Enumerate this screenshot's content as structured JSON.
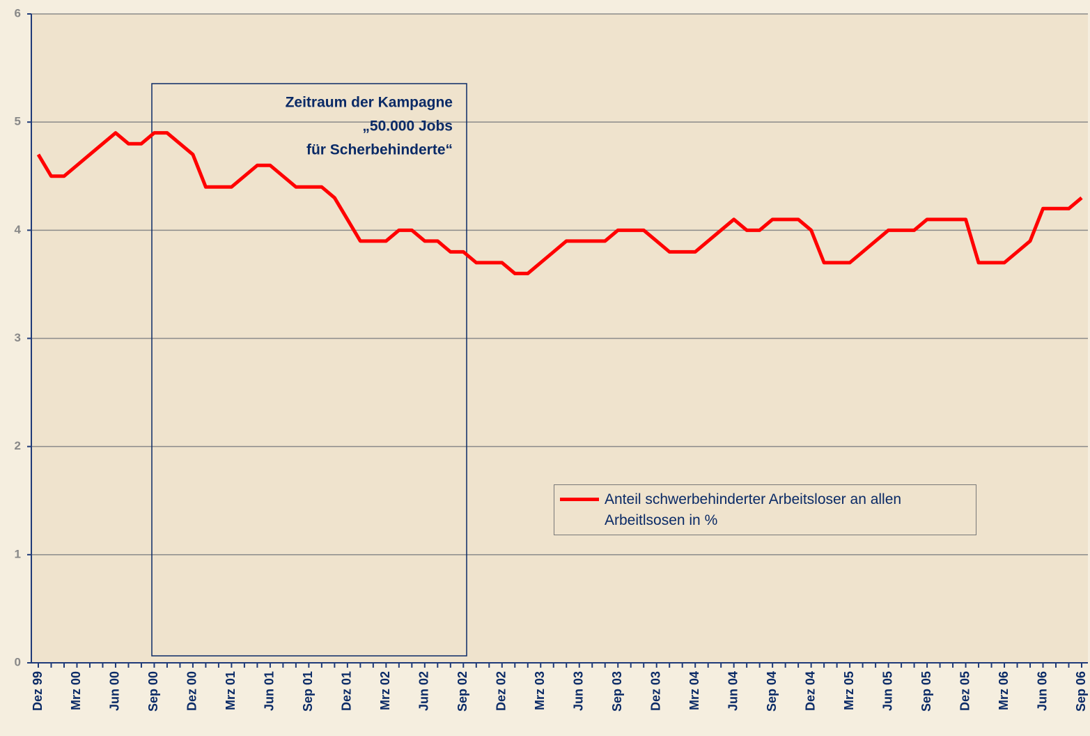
{
  "chart_data": {
    "type": "line",
    "categories": [
      "Dez 99",
      null,
      null,
      "Mrz 00",
      null,
      null,
      "Jun 00",
      null,
      null,
      "Sep 00",
      null,
      null,
      "Dez 00",
      null,
      null,
      "Mrz 01",
      null,
      null,
      "Jun 01",
      null,
      null,
      "Sep 01",
      null,
      null,
      "Dez 01",
      null,
      null,
      "Mrz 02",
      null,
      null,
      "Jun 02",
      null,
      null,
      "Sep 02",
      null,
      null,
      "Dez 02",
      null,
      null,
      "Mrz 03",
      null,
      null,
      "Jun 03",
      null,
      null,
      "Sep 03",
      null,
      null,
      "Dez 03",
      null,
      null,
      "Mrz 04",
      null,
      null,
      "Jun 04",
      null,
      null,
      "Sep 04",
      null,
      null,
      "Dez 04",
      null,
      null,
      "Mrz 05",
      null,
      null,
      "Jun 05",
      null,
      null,
      "Sep 05",
      null,
      null,
      "Dez 05",
      null,
      null,
      "Mrz 06",
      null,
      null,
      "Jun 06",
      null,
      null,
      "Sep 06"
    ],
    "series": [
      {
        "name": "Anteil schwerbehinderter Arbeitsloser an allen Arbeitlsosen in %",
        "color": "#ff0000",
        "values": [
          4.7,
          4.5,
          4.5,
          4.6,
          4.7,
          4.8,
          4.9,
          4.8,
          4.8,
          4.9,
          4.9,
          4.8,
          4.7,
          4.4,
          4.4,
          4.4,
          4.5,
          4.6,
          4.6,
          4.5,
          4.4,
          4.4,
          4.4,
          4.3,
          4.1,
          3.9,
          3.9,
          3.9,
          4.0,
          4.0,
          3.9,
          3.9,
          3.8,
          3.8,
          3.7,
          3.7,
          3.7,
          3.6,
          3.6,
          3.7,
          3.8,
          3.9,
          3.9,
          3.9,
          3.9,
          4.0,
          4.0,
          4.0,
          3.9,
          3.8,
          3.8,
          3.8,
          3.9,
          4.0,
          4.1,
          4.0,
          4.0,
          4.1,
          4.1,
          4.1,
          4.0,
          3.7,
          3.7,
          3.7,
          3.8,
          3.9,
          4.0,
          4.0,
          4.0,
          4.1,
          4.1,
          4.1,
          4.1,
          3.7,
          3.7,
          3.7,
          3.8,
          3.9,
          4.2,
          4.2,
          4.2,
          4.3
        ]
      }
    ],
    "ylim": [
      0,
      6
    ],
    "yticks": [
      0,
      1,
      2,
      3,
      4,
      5,
      6
    ],
    "grid": true,
    "annotation": [
      "Zeitraum der Kampagne",
      "„50.000 Jobs",
      "für Scherbehinderte“"
    ]
  }
}
